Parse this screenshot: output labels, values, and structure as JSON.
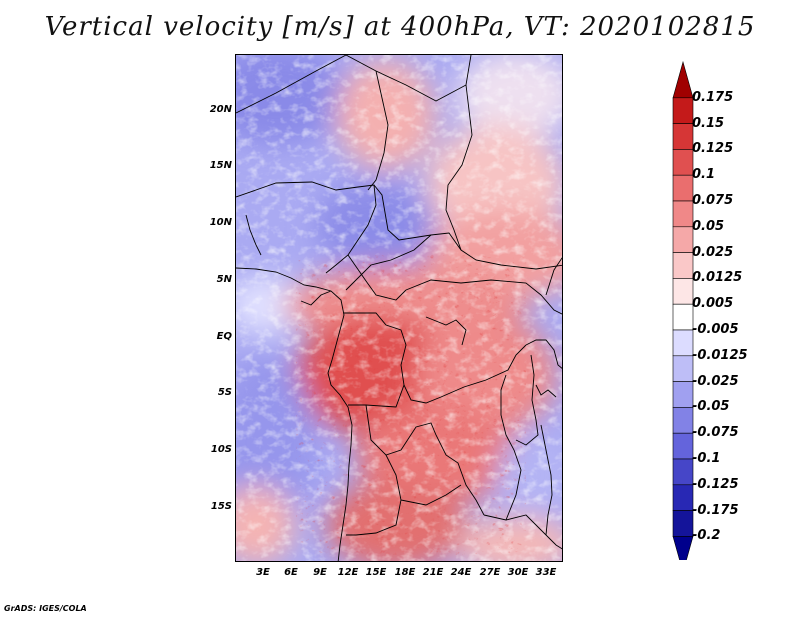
{
  "title": "Vertical velocity [m/s] at 400hPa, VT: 2020102815",
  "footer": "GrADS: IGES/COLA",
  "map": {
    "region": "Central Africa",
    "lat_labels": [
      "20N",
      "15N",
      "10N",
      "5N",
      "EQ",
      "5S",
      "10S",
      "15S"
    ],
    "lon_labels": [
      "3E",
      "6E",
      "9E",
      "12E",
      "15E",
      "18E",
      "21E",
      "24E",
      "27E",
      "30E",
      "33E"
    ],
    "lat_range": [
      -20,
      24.5
    ],
    "lon_range": [
      0,
      35
    ]
  },
  "colorbar": {
    "labels": [
      "0.175",
      "0.15",
      "0.125",
      "0.1",
      "0.075",
      "0.05",
      "0.025",
      "0.0125",
      "0.005",
      "-0.005",
      "-0.0125",
      "-0.025",
      "-0.05",
      "-0.075",
      "-0.1",
      "-0.125",
      "-0.175",
      "-0.2"
    ],
    "colors": [
      "#a00000",
      "#c41a1a",
      "#d63636",
      "#e05050",
      "#ea6e6e",
      "#f08888",
      "#f5a8a8",
      "#fac8c8",
      "#fde6e6",
      "#ffffff",
      "#dcdcff",
      "#bebef7",
      "#a0a0f0",
      "#8282e6",
      "#6464dc",
      "#4646c8",
      "#2828b4",
      "#14149a",
      "#00008c"
    ]
  },
  "colors": {
    "positive": "#d63636",
    "negative": "#6464dc",
    "border": "#000000"
  }
}
